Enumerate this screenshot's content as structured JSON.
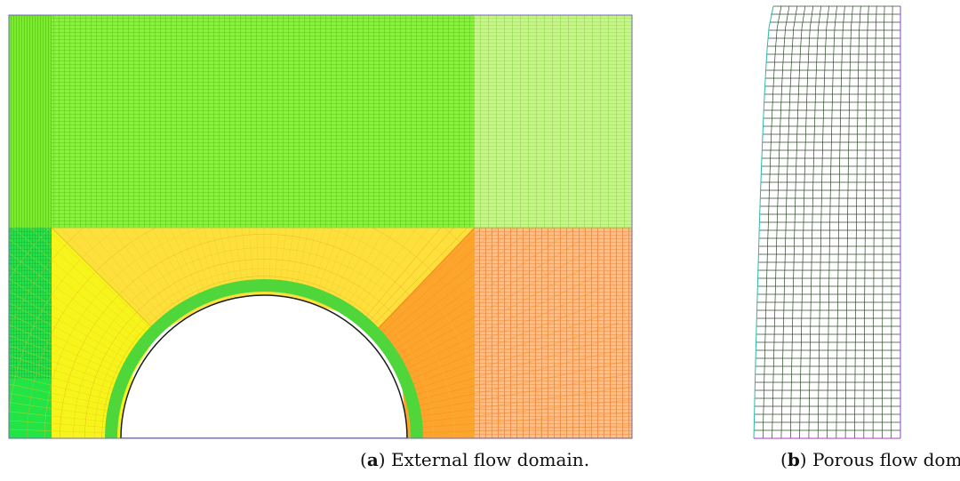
{
  "figure": {
    "panels": [
      {
        "label": "a",
        "caption": "External flow domain.",
        "zones": [
          {
            "name": "upper-left-block",
            "color": "#7cec2c"
          },
          {
            "name": "upper-middle-block",
            "color": "#8df03a"
          },
          {
            "name": "upper-right-block",
            "color": "#bff27a"
          },
          {
            "name": "left-strip",
            "color": "#22e447"
          },
          {
            "name": "left-yellow-block",
            "color": "#f4f21e"
          },
          {
            "name": "top-yellow-block",
            "color": "#fde23a"
          },
          {
            "name": "right-orange-block",
            "color": "#fcb23a"
          },
          {
            "name": "far-right-block",
            "color": "#fbb27c"
          },
          {
            "name": "cylinder-boundary-layer",
            "color": "#4ed63a"
          }
        ]
      },
      {
        "label": "b",
        "caption": "Porous flow domain.",
        "zones": [
          {
            "name": "porous-mesh",
            "color": "#2f4a2a"
          }
        ]
      }
    ]
  }
}
